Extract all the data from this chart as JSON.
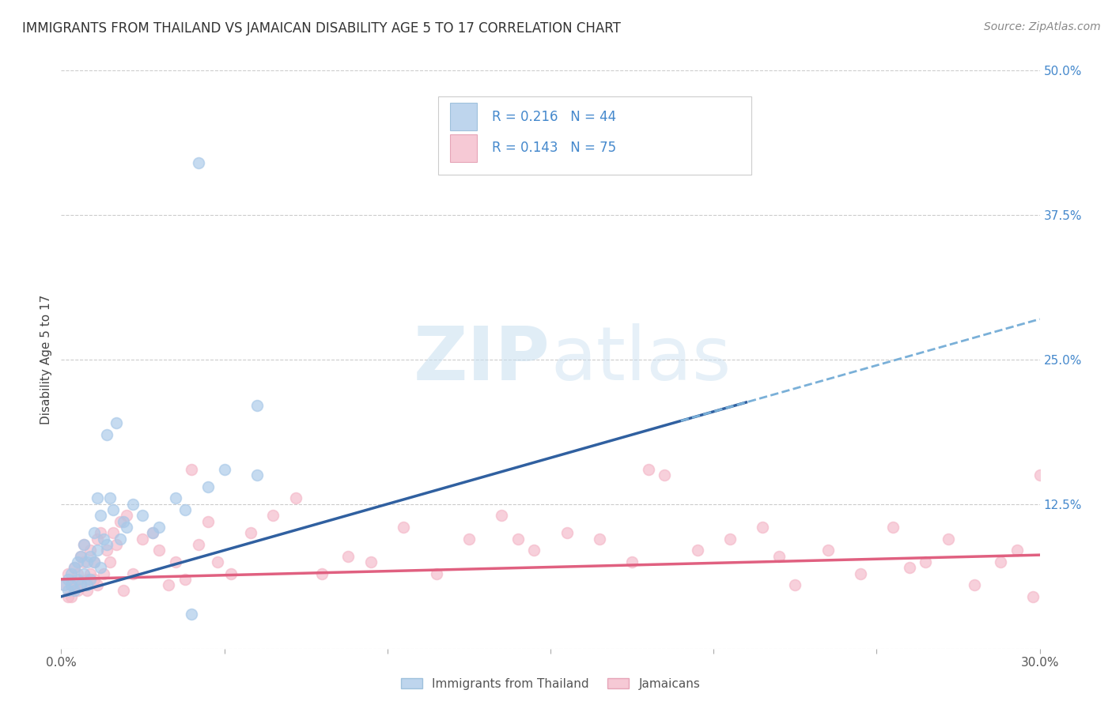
{
  "title": "IMMIGRANTS FROM THAILAND VS JAMAICAN DISABILITY AGE 5 TO 17 CORRELATION CHART",
  "source": "Source: ZipAtlas.com",
  "ylabel": "Disability Age 5 to 17",
  "x_min": 0.0,
  "x_max": 0.3,
  "y_min": 0.0,
  "y_max": 0.5,
  "x_ticks": [
    0.0,
    0.05,
    0.1,
    0.15,
    0.2,
    0.25,
    0.3
  ],
  "y_ticks_right": [
    0.0,
    0.125,
    0.25,
    0.375,
    0.5
  ],
  "y_tick_labels_right": [
    "",
    "12.5%",
    "25.0%",
    "37.5%",
    "50.0%"
  ],
  "color_blue": "#a8c8e8",
  "color_pink": "#f4b8c8",
  "line_blue": "#3060a0",
  "line_pink": "#e06080",
  "R_blue": 0.216,
  "N_blue": 44,
  "R_pink": 0.143,
  "N_pink": 75,
  "legend_label_blue": "Immigrants from Thailand",
  "legend_label_pink": "Jamaicans",
  "th_intercept": 0.045,
  "th_slope": 0.8,
  "ja_intercept": 0.06,
  "ja_slope": 0.07,
  "thailand_x": [
    0.001,
    0.002,
    0.002,
    0.003,
    0.003,
    0.004,
    0.004,
    0.005,
    0.005,
    0.006,
    0.006,
    0.007,
    0.007,
    0.008,
    0.008,
    0.009,
    0.009,
    0.01,
    0.01,
    0.011,
    0.011,
    0.012,
    0.012,
    0.013,
    0.014,
    0.015,
    0.016,
    0.018,
    0.019,
    0.02,
    0.022,
    0.025,
    0.028,
    0.03,
    0.035,
    0.038,
    0.04,
    0.045,
    0.05,
    0.06,
    0.042,
    0.014,
    0.017,
    0.06
  ],
  "thailand_y": [
    0.055,
    0.06,
    0.05,
    0.065,
    0.055,
    0.07,
    0.05,
    0.06,
    0.075,
    0.055,
    0.08,
    0.065,
    0.09,
    0.075,
    0.055,
    0.08,
    0.06,
    0.075,
    0.1,
    0.085,
    0.13,
    0.115,
    0.07,
    0.095,
    0.09,
    0.13,
    0.12,
    0.095,
    0.11,
    0.105,
    0.125,
    0.115,
    0.1,
    0.105,
    0.13,
    0.12,
    0.03,
    0.14,
    0.155,
    0.15,
    0.42,
    0.185,
    0.195,
    0.21
  ],
  "jamaica_x": [
    0.001,
    0.002,
    0.002,
    0.003,
    0.003,
    0.004,
    0.004,
    0.005,
    0.005,
    0.006,
    0.006,
    0.007,
    0.007,
    0.008,
    0.008,
    0.009,
    0.009,
    0.01,
    0.01,
    0.011,
    0.011,
    0.012,
    0.013,
    0.014,
    0.015,
    0.016,
    0.017,
    0.018,
    0.019,
    0.02,
    0.022,
    0.025,
    0.028,
    0.03,
    0.033,
    0.035,
    0.038,
    0.04,
    0.042,
    0.045,
    0.048,
    0.052,
    0.058,
    0.065,
    0.072,
    0.08,
    0.088,
    0.095,
    0.105,
    0.115,
    0.125,
    0.135,
    0.145,
    0.155,
    0.165,
    0.175,
    0.185,
    0.195,
    0.205,
    0.215,
    0.225,
    0.235,
    0.245,
    0.255,
    0.265,
    0.272,
    0.28,
    0.288,
    0.293,
    0.298,
    0.18,
    0.22,
    0.26,
    0.14,
    0.3
  ],
  "jamaica_y": [
    0.055,
    0.045,
    0.065,
    0.055,
    0.045,
    0.07,
    0.055,
    0.05,
    0.065,
    0.08,
    0.055,
    0.075,
    0.09,
    0.06,
    0.05,
    0.085,
    0.065,
    0.06,
    0.075,
    0.095,
    0.055,
    0.1,
    0.065,
    0.085,
    0.075,
    0.1,
    0.09,
    0.11,
    0.05,
    0.115,
    0.065,
    0.095,
    0.1,
    0.085,
    0.055,
    0.075,
    0.06,
    0.155,
    0.09,
    0.11,
    0.075,
    0.065,
    0.1,
    0.115,
    0.13,
    0.065,
    0.08,
    0.075,
    0.105,
    0.065,
    0.095,
    0.115,
    0.085,
    0.1,
    0.095,
    0.075,
    0.15,
    0.085,
    0.095,
    0.105,
    0.055,
    0.085,
    0.065,
    0.105,
    0.075,
    0.095,
    0.055,
    0.075,
    0.085,
    0.045,
    0.155,
    0.08,
    0.07,
    0.095,
    0.15
  ]
}
